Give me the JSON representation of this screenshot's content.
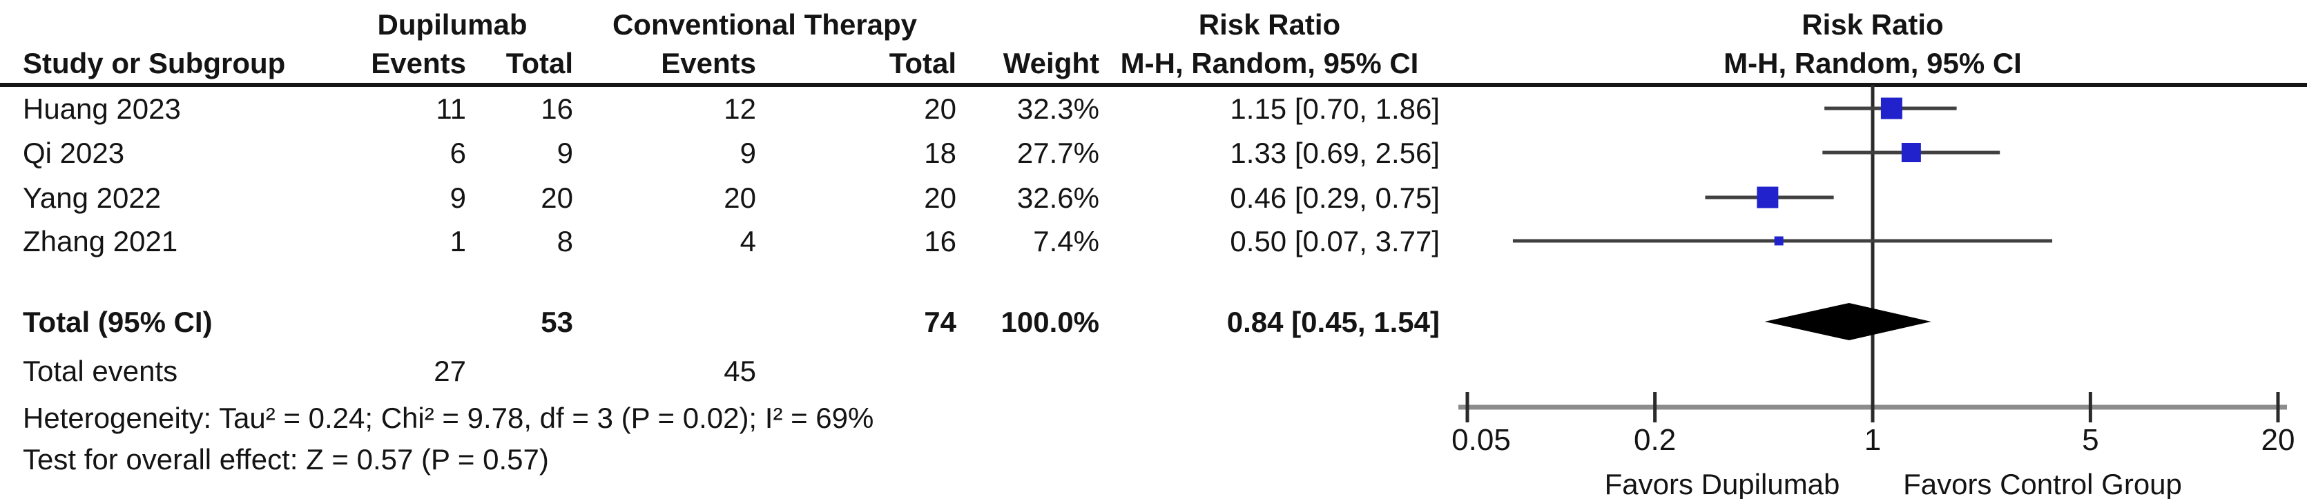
{
  "table": {
    "group_headers": {
      "dupilumab": "Dupilumab",
      "conventional": "Conventional Therapy",
      "risk_ratio": "Risk Ratio"
    },
    "col_headers": {
      "study": "Study or Subgroup",
      "events1": "Events",
      "total1": "Total",
      "events2": "Events",
      "total2": "Total",
      "weight": "Weight",
      "mh_ci": "M-H, Random, 95% CI"
    },
    "rows": [
      {
        "study": "Huang 2023",
        "e1": "11",
        "t1": "16",
        "e2": "12",
        "t2": "20",
        "weight": "32.3%",
        "ci": "1.15 [0.70, 1.86]"
      },
      {
        "study": "Qi 2023",
        "e1": "6",
        "t1": "9",
        "e2": "9",
        "t2": "18",
        "weight": "27.7%",
        "ci": "1.33 [0.69, 2.56]"
      },
      {
        "study": "Yang 2022",
        "e1": "9",
        "t1": "20",
        "e2": "20",
        "t2": "20",
        "weight": "32.6%",
        "ci": "0.46 [0.29, 0.75]"
      },
      {
        "study": "Zhang 2021",
        "e1": "1",
        "t1": "8",
        "e2": "4",
        "t2": "16",
        "weight": "7.4%",
        "ci": "0.50 [0.07, 3.77]"
      }
    ],
    "total_row": {
      "label": "Total (95% CI)",
      "t1": "53",
      "t2": "74",
      "weight": "100.0%",
      "ci": "0.84 [0.45, 1.54]"
    },
    "total_events": {
      "label": "Total events",
      "e1": "27",
      "e2": "45"
    },
    "heterogeneity": "Heterogeneity: Tau² = 0.24; Chi² = 9.78, df = 3 (P = 0.02); I² = 69%",
    "overall_effect": "Test for overall effect: Z = 0.57 (P = 0.57)"
  },
  "plot": {
    "header_line1": "Risk Ratio",
    "header_line2": "M-H, Random, 95% CI"
  },
  "chart_data": {
    "type": "forest",
    "effect_measure": "Risk Ratio",
    "method": "M-H, Random, 95% CI",
    "x_scale": "log",
    "xlim": [
      0.05,
      20
    ],
    "ticks": [
      0.05,
      0.2,
      1,
      5,
      20
    ],
    "no_effect_line": 1,
    "favors_left": "Favors Dupilumab",
    "favors_right": "Favors Control Group",
    "studies": [
      {
        "name": "Huang 2023",
        "events_treat": 11,
        "total_treat": 16,
        "events_ctrl": 12,
        "total_ctrl": 20,
        "weight_pct": 32.3,
        "rr": 1.15,
        "ci_low": 0.7,
        "ci_high": 1.86
      },
      {
        "name": "Qi 2023",
        "events_treat": 6,
        "total_treat": 9,
        "events_ctrl": 9,
        "total_ctrl": 18,
        "weight_pct": 27.7,
        "rr": 1.33,
        "ci_low": 0.69,
        "ci_high": 2.56
      },
      {
        "name": "Yang 2022",
        "events_treat": 9,
        "total_treat": 20,
        "events_ctrl": 20,
        "total_ctrl": 20,
        "weight_pct": 32.6,
        "rr": 0.46,
        "ci_low": 0.29,
        "ci_high": 0.75
      },
      {
        "name": "Zhang 2021",
        "events_treat": 1,
        "total_treat": 8,
        "events_ctrl": 4,
        "total_ctrl": 16,
        "weight_pct": 7.4,
        "rr": 0.5,
        "ci_low": 0.07,
        "ci_high": 3.77
      }
    ],
    "total": {
      "label": "Total (95% CI)",
      "total_treat": 53,
      "total_ctrl": 74,
      "total_events_treat": 27,
      "total_events_ctrl": 45,
      "weight_pct": 100.0,
      "rr": 0.84,
      "ci_low": 0.45,
      "ci_high": 1.54
    },
    "heterogeneity": {
      "tau2": 0.24,
      "chi2": 9.78,
      "df": 3,
      "p": 0.02,
      "i2_pct": 69
    },
    "overall_effect": {
      "z": 0.57,
      "p": 0.57
    }
  },
  "colors": {
    "square_blue": "#2122cb",
    "whisker": "#404040",
    "diamond": "#000000",
    "axis_bar": "#8c8c8c",
    "axis_tick": "#2a2a2a",
    "text": "#141414",
    "separator": "#161616"
  }
}
